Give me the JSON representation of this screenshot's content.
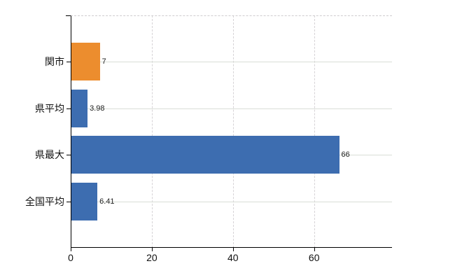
{
  "chart_data": {
    "type": "bar",
    "orientation": "horizontal",
    "categories": [
      "関市",
      "県平均",
      "県最大",
      "全国平均"
    ],
    "values": [
      7,
      3.98,
      66,
      6.41
    ],
    "value_labels": [
      "7",
      "3.98",
      "66",
      "6.41"
    ],
    "bar_colors": [
      "#ec8d2e",
      "#3d6db0",
      "#3d6db0",
      "#3d6db0"
    ],
    "highlight_color": "#ec8d2e",
    "default_color": "#3d6db0",
    "x_tick_labels": [
      "0",
      "20",
      "40",
      "60"
    ],
    "x_tick_values": [
      0,
      20,
      40,
      60
    ],
    "xlim": [
      0,
      79.2
    ],
    "grid": true,
    "legend_position": "none",
    "plot_border_top_style": "dashed"
  },
  "colors": {
    "background": "#ffffff",
    "axis": "#000000",
    "grid_vertical": "#d6d3d6",
    "grid_horizontal": "#d9ded7",
    "value_label_text": "#222222",
    "category_label_text": "#111111"
  }
}
